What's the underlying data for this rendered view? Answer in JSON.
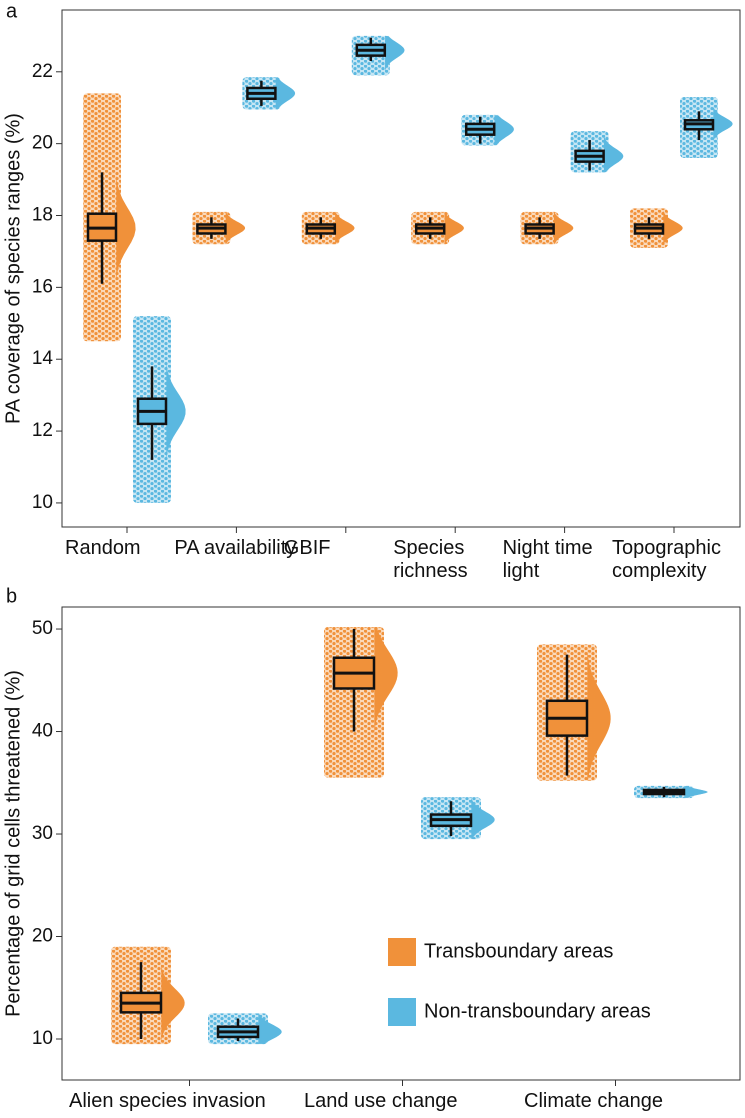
{
  "chart_data": [
    {
      "type": "raincloud",
      "panel_label": "a",
      "ylabel": "PA coverage of species ranges (%)",
      "categories": [
        "Random",
        "PA availability",
        "GBIF",
        "Species richness",
        "Night time light",
        "Topographic complexity"
      ],
      "ylim": [
        9.33,
        23.72
      ],
      "yticks": [
        10,
        12,
        14,
        16,
        18,
        20,
        22
      ],
      "series": [
        {
          "color": "#f0913a",
          "boxes": [
            {
              "min": 16.1,
              "q1": 17.3,
              "median": 17.65,
              "q3": 18.05,
              "max": 19.2,
              "points_min": 14.5,
              "points_max": 21.4
            },
            {
              "min": 17.35,
              "q1": 17.5,
              "median": 17.65,
              "q3": 17.75,
              "max": 17.95,
              "points_min": 17.2,
              "points_max": 18.1
            },
            {
              "min": 17.35,
              "q1": 17.5,
              "median": 17.65,
              "q3": 17.75,
              "max": 17.95,
              "points_min": 17.2,
              "points_max": 18.1
            },
            {
              "min": 17.35,
              "q1": 17.5,
              "median": 17.65,
              "q3": 17.75,
              "max": 17.95,
              "points_min": 17.2,
              "points_max": 18.1
            },
            {
              "min": 17.35,
              "q1": 17.5,
              "median": 17.65,
              "q3": 17.75,
              "max": 17.95,
              "points_min": 17.2,
              "points_max": 18.1
            },
            {
              "min": 17.35,
              "q1": 17.5,
              "median": 17.65,
              "q3": 17.75,
              "max": 17.95,
              "points_min": 17.1,
              "points_max": 18.2
            }
          ]
        },
        {
          "color": "#5bb8e0",
          "boxes": [
            {
              "min": 11.2,
              "q1": 12.2,
              "median": 12.55,
              "q3": 12.9,
              "max": 13.8,
              "points_min": 10.0,
              "points_max": 15.2
            },
            {
              "min": 21.05,
              "q1": 21.25,
              "median": 21.4,
              "q3": 21.55,
              "max": 21.75,
              "points_min": 20.95,
              "points_max": 21.85
            },
            {
              "min": 22.3,
              "q1": 22.45,
              "median": 22.6,
              "q3": 22.75,
              "max": 22.95,
              "points_min": 21.9,
              "points_max": 23.0
            },
            {
              "min": 20.0,
              "q1": 20.25,
              "median": 20.4,
              "q3": 20.55,
              "max": 20.75,
              "points_min": 19.95,
              "points_max": 20.8
            },
            {
              "min": 19.25,
              "q1": 19.5,
              "median": 19.65,
              "q3": 19.8,
              "max": 20.1,
              "points_min": 19.2,
              "points_max": 20.35
            },
            {
              "min": 20.1,
              "q1": 20.4,
              "median": 20.55,
              "q3": 20.65,
              "max": 20.9,
              "points_min": 19.6,
              "points_max": 21.3
            }
          ]
        }
      ]
    },
    {
      "type": "raincloud",
      "panel_label": "b",
      "ylabel": "Percentage of grid cells threatened (%)",
      "categories": [
        "Alien species invasion",
        "Land use change",
        "Climate change"
      ],
      "ylim": [
        6.0,
        52.15
      ],
      "yticks": [
        10,
        20,
        30,
        40,
        50
      ],
      "legend": "lower right",
      "series": [
        {
          "name": "Transboundary areas",
          "color": "#f0913a",
          "boxes": [
            {
              "min": 10.0,
              "q1": 12.6,
              "median": 13.5,
              "q3": 14.5,
              "max": 17.5,
              "points_min": 9.5,
              "points_max": 19.0
            },
            {
              "min": 40.0,
              "q1": 44.2,
              "median": 45.7,
              "q3": 47.2,
              "max": 50.0,
              "points_min": 35.5,
              "points_max": 50.2
            },
            {
              "min": 35.7,
              "q1": 39.6,
              "median": 41.3,
              "q3": 43.0,
              "max": 47.5,
              "points_min": 35.2,
              "points_max": 48.5
            }
          ]
        },
        {
          "name": "Non-transboundary areas",
          "color": "#5bb8e0",
          "boxes": [
            {
              "min": 9.8,
              "q1": 10.2,
              "median": 10.7,
              "q3": 11.2,
              "max": 12.0,
              "points_min": 9.5,
              "points_max": 12.5
            },
            {
              "min": 29.8,
              "q1": 30.8,
              "median": 31.4,
              "q3": 31.9,
              "max": 33.2,
              "points_min": 29.5,
              "points_max": 33.6
            },
            {
              "min": 33.6,
              "q1": 33.9,
              "median": 34.1,
              "q3": 34.3,
              "max": 34.6,
              "points_min": 33.5,
              "points_max": 34.7
            }
          ]
        }
      ]
    }
  ]
}
